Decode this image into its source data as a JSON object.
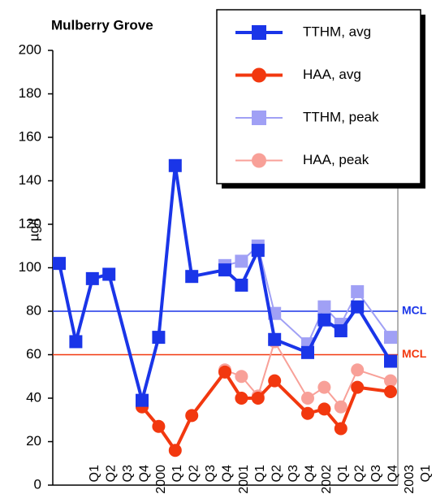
{
  "chart_data": {
    "type": "line",
    "title": "Mulberry Grove",
    "y_label": "µg/l",
    "categories": [
      "Q1",
      "Q2",
      "Q3",
      "Q4",
      "2000",
      "Q1",
      "Q2",
      "Q3",
      "Q4",
      "2001",
      "Q1",
      "Q2",
      "Q3",
      "Q4",
      "2002",
      "Q1",
      "Q2",
      "Q3",
      "Q4",
      "2003",
      "Q1"
    ],
    "series": [
      {
        "name": "TTHM, avg",
        "color": "#1a35e8",
        "marker": "square",
        "width": 4,
        "values": [
          102,
          66,
          95,
          97,
          null,
          39,
          68,
          147,
          96,
          null,
          99,
          92,
          108,
          67,
          null,
          61,
          76,
          71,
          82,
          null,
          57
        ]
      },
      {
        "name": "HAA, avg",
        "color": "#f2380f",
        "marker": "circle",
        "width": 4,
        "values": [
          null,
          null,
          null,
          null,
          null,
          36,
          27,
          16,
          32,
          null,
          52,
          40,
          40,
          48,
          null,
          33,
          35,
          26,
          45,
          null,
          43
        ]
      },
      {
        "name": "TTHM, peak",
        "color": "#a0a0f5",
        "marker": "square",
        "width": 2,
        "values": [
          null,
          null,
          null,
          null,
          null,
          null,
          null,
          null,
          null,
          null,
          101,
          103,
          110,
          79,
          null,
          65,
          82,
          74,
          89,
          null,
          68
        ]
      },
      {
        "name": "HAA, peak",
        "color": "#f8a098",
        "marker": "circle",
        "width": 2,
        "values": [
          null,
          null,
          null,
          null,
          null,
          null,
          null,
          null,
          null,
          null,
          53,
          50,
          41,
          66,
          null,
          40,
          45,
          36,
          53,
          null,
          48
        ]
      }
    ],
    "connect_gaps": true,
    "reference_lines": [
      {
        "value": 80,
        "label": "MCL",
        "color": "#1a35e8"
      },
      {
        "value": 60,
        "label": "MCL",
        "color": "#f2380f"
      }
    ],
    "ylim": [
      0,
      200
    ],
    "yticks": [
      0,
      20,
      40,
      60,
      80,
      100,
      120,
      140,
      160,
      180,
      200
    ]
  }
}
